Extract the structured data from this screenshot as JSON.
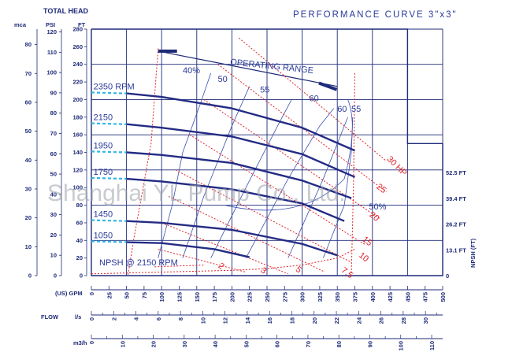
{
  "chart_data": {
    "type": "line",
    "title": "PERFORMANCE CURVE 3\"x3\"",
    "watermark": "Shanghai YL Pump Co., Ltd.",
    "left_axis": {
      "label_total_head": "TOTAL HEAD",
      "mca_label": "mca",
      "psi_label": "PSI",
      "ft_label": "FT",
      "ft_ticks": [
        0,
        20,
        40,
        60,
        80,
        100,
        120,
        140,
        160,
        180,
        200,
        220,
        240,
        260,
        280
      ],
      "psi_ticks": [
        0,
        10,
        20,
        30,
        40,
        50,
        60,
        70,
        80,
        90,
        100,
        110,
        120
      ],
      "mca_ticks": [
        0,
        10,
        20,
        30,
        40,
        50,
        60,
        70,
        80
      ]
    },
    "x_axis": {
      "gpm_label": "(US) GPM",
      "gpm_ticks": [
        0,
        25,
        50,
        75,
        100,
        125,
        150,
        175,
        200,
        225,
        250,
        275,
        300,
        325,
        350,
        375,
        400,
        425,
        450,
        475,
        500
      ],
      "flow_label": "FLOW",
      "ls_label": "l/s",
      "ls_ticks": [
        0,
        2,
        4,
        6,
        8,
        10,
        12,
        14,
        16,
        18,
        20,
        22,
        24,
        26,
        28,
        30
      ],
      "m3h_label": "m3/h",
      "m3h_ticks": [
        0,
        10,
        20,
        30,
        40,
        50,
        60,
        70,
        80,
        90,
        100,
        110
      ]
    },
    "npsh_axis": {
      "label": "NPSH (FT)",
      "ticks": [
        "0",
        "13.1 FT",
        "26.2 FT",
        "39.4 FT",
        "52.5 FT"
      ]
    },
    "xlim": [
      0,
      500
    ],
    "ylim": [
      0,
      280
    ],
    "series": [
      {
        "name": "2350 RPM",
        "x": [
          50,
          100,
          200,
          300,
          375
        ],
        "y": [
          207,
          203,
          190,
          168,
          142
        ],
        "dashed_x": [
          0,
          50
        ],
        "dashed_y": [
          208,
          207
        ]
      },
      {
        "name": "2150",
        "x": [
          50,
          100,
          200,
          300,
          375
        ],
        "y": [
          172,
          168,
          158,
          138,
          112
        ],
        "dashed_x": [
          0,
          50
        ],
        "dashed_y": [
          173,
          172
        ]
      },
      {
        "name": "1950",
        "x": [
          50,
          100,
          200,
          300,
          370
        ],
        "y": [
          140,
          137,
          128,
          108,
          88
        ],
        "dashed_x": [
          0,
          50
        ],
        "dashed_y": [
          141,
          140
        ]
      },
      {
        "name": "1750",
        "x": [
          50,
          100,
          200,
          300,
          360
        ],
        "y": [
          110,
          107,
          98,
          82,
          62
        ],
        "dashed_x": [
          0,
          50
        ],
        "dashed_y": [
          111,
          110
        ]
      },
      {
        "name": "1450",
        "x": [
          50,
          100,
          200,
          300,
          350
        ],
        "y": [
          62,
          60,
          52,
          36,
          23
        ],
        "dashed_x": [
          0,
          50
        ],
        "dashed_y": [
          63,
          62
        ]
      },
      {
        "name": "1050",
        "x": [
          50,
          100,
          175,
          225
        ],
        "y": [
          38,
          37,
          30,
          21
        ],
        "dashed_x": [
          0,
          50
        ],
        "dashed_y": [
          39,
          38
        ]
      }
    ],
    "npsh_curve": {
      "name": "NPSH @ 2150 RPM",
      "x": [
        0,
        50,
        100,
        150,
        200,
        250,
        300,
        350,
        375
      ],
      "y": [
        2,
        3,
        4,
        5,
        6,
        8,
        12,
        20,
        30
      ]
    },
    "operating_range": {
      "label": "OPERATING RANGE",
      "x": [
        95,
        350
      ],
      "y": [
        255,
        215
      ]
    },
    "efficiency_labels": [
      "40%",
      "50",
      "55",
      "60",
      "60",
      "55",
      "50%"
    ],
    "hp_labels": [
      "30 HP",
      "25",
      "20",
      "15",
      "10",
      "7.5",
      "5",
      "3",
      "2"
    ]
  }
}
